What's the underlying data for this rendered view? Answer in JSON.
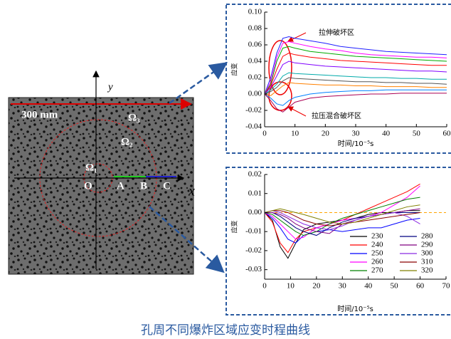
{
  "photo": {
    "y_axis": "y",
    "x_axis": "x",
    "scale": "300 mm",
    "regions": [
      "Ω₃",
      "Ω₂",
      "Ω₁"
    ],
    "points": [
      "O",
      "A",
      "B",
      "C"
    ]
  },
  "chart_data": [
    {
      "type": "line",
      "x_label": "时间/10⁻⁵s",
      "y_label": "应变",
      "annotations": [
        "拉伸破坏区",
        "拉压混合破坏区"
      ],
      "x": [
        0,
        2,
        4,
        6,
        8,
        10,
        15,
        20,
        25,
        30,
        35,
        40,
        45,
        50,
        55,
        60
      ],
      "xlim": [
        0,
        60
      ],
      "xticks": [
        0,
        10,
        20,
        30,
        40,
        50,
        60
      ],
      "ylim": [
        -0.04,
        0.1
      ],
      "yticks": [
        -0.04,
        -0.02,
        {
          "value": 0,
          "label": "0.00"
        },
        0.02,
        0.04,
        0.06,
        0.08,
        {
          "value": 0.1,
          "label": "0.10"
        }
      ],
      "series": [
        {
          "color": "#1f1fff",
          "values": [
            0,
            0.02,
            0.05,
            0.068,
            0.07,
            0.068,
            0.065,
            0.062,
            0.058,
            0.056,
            0.054,
            0.052,
            0.051,
            0.05,
            0.049,
            0.048
          ]
        },
        {
          "color": "#ff00ff",
          "values": [
            0,
            0.015,
            0.045,
            0.062,
            0.064,
            0.062,
            0.058,
            0.055,
            0.053,
            0.05,
            0.048,
            0.047,
            0.046,
            0.045,
            0.045,
            0.044
          ]
        },
        {
          "color": "#00aa00",
          "values": [
            0,
            0.012,
            0.04,
            0.056,
            0.058,
            0.056,
            0.052,
            0.05,
            0.048,
            0.046,
            0.045,
            0.044,
            0.043,
            0.042,
            0.041,
            0.04
          ]
        },
        {
          "color": "#ff0000",
          "values": [
            0,
            0.01,
            0.03,
            0.046,
            0.05,
            0.048,
            0.045,
            0.043,
            0.041,
            0.04,
            0.039,
            0.038,
            0.037,
            0.036,
            0.035,
            0.035
          ]
        },
        {
          "color": "#8000ff",
          "values": [
            0,
            0.008,
            0.022,
            0.036,
            0.04,
            0.038,
            0.036,
            0.034,
            0.033,
            0.032,
            0.031,
            0.03,
            0.029,
            0.028,
            0.028,
            0.027
          ]
        },
        {
          "color": "#00aaaa",
          "values": [
            0,
            0.005,
            0.012,
            0.022,
            0.026,
            0.025,
            0.024,
            0.023,
            0.022,
            0.021,
            0.02,
            0.02,
            0.019,
            0.019,
            0.018,
            0.018
          ]
        },
        {
          "color": "#555555",
          "values": [
            0,
            0.003,
            0.008,
            0.016,
            0.02,
            0.019,
            0.018,
            0.017,
            0.016,
            0.015,
            0.015,
            0.014,
            0.014,
            0.013,
            0.013,
            0.012
          ]
        },
        {
          "color": "#ff8000",
          "values": [
            0,
            -0.002,
            0.004,
            0.01,
            0.014,
            0.013,
            0.012,
            0.011,
            0.011,
            0.01,
            0.01,
            0.009,
            0.009,
            0.009,
            0.008,
            0.008
          ]
        },
        {
          "color": "#0080ff",
          "values": [
            0,
            -0.005,
            -0.012,
            -0.014,
            -0.008,
            -0.004,
            0,
            0.002,
            0.003,
            0.004,
            0.004,
            0.005,
            0.005,
            0.005,
            0.005,
            0.005
          ]
        },
        {
          "color": "#aa0055",
          "values": [
            0,
            -0.008,
            -0.018,
            -0.022,
            -0.016,
            -0.01,
            -0.005,
            -0.003,
            -0.002,
            -0.001,
            0,
            0,
            0.001,
            0.001,
            0.001,
            0.001
          ]
        }
      ]
    },
    {
      "type": "line",
      "x_label": "时间/10⁻⁵s",
      "y_label": "应变",
      "legend": "lower right",
      "hline": 0,
      "hline_color": "#ffa500",
      "x": [
        0,
        3,
        6,
        9,
        12,
        15,
        20,
        25,
        30,
        35,
        40,
        45,
        50,
        55,
        60
      ],
      "xlim": [
        0,
        70
      ],
      "xticks": [
        0,
        10,
        20,
        30,
        40,
        50,
        60,
        70
      ],
      "ylim": [
        -0.035,
        0.02
      ],
      "yticks": [
        -0.03,
        -0.02,
        -0.01,
        {
          "value": 0,
          "label": "0.00"
        },
        0.01,
        0.02
      ],
      "series": [
        {
          "name": "230",
          "color": "#000000",
          "values": [
            0,
            -0.004,
            -0.018,
            -0.024,
            -0.016,
            -0.009,
            -0.006,
            -0.005,
            -0.004,
            -0.003,
            -0.001,
            0,
            0,
            0.001,
            0.001
          ]
        },
        {
          "name": "240",
          "color": "#ff0000",
          "values": [
            0,
            -0.005,
            -0.016,
            -0.021,
            -0.014,
            -0.01,
            -0.008,
            -0.006,
            -0.004,
            -0.001,
            0.002,
            0.005,
            0.008,
            0.011,
            0.015
          ]
        },
        {
          "name": "250",
          "color": "#0000ff",
          "values": [
            0,
            -0.003,
            -0.008,
            -0.014,
            -0.016,
            -0.012,
            -0.01,
            -0.009,
            -0.01,
            -0.009,
            -0.008,
            -0.008,
            -0.006,
            -0.004,
            -0.003
          ]
        },
        {
          "name": "260",
          "color": "#ff00ff",
          "values": [
            0,
            -0.002,
            -0.006,
            -0.01,
            -0.014,
            -0.013,
            -0.008,
            -0.006,
            -0.004,
            -0.003,
            -0.002,
            0,
            0.004,
            0.008,
            0.014
          ]
        },
        {
          "name": "270",
          "color": "#008000",
          "values": [
            0,
            -0.001,
            -0.004,
            -0.007,
            -0.01,
            -0.012,
            -0.01,
            -0.006,
            -0.003,
            -0.001,
            0.001,
            0.003,
            0.005,
            0.007,
            0.008
          ]
        },
        {
          "name": "280",
          "color": "#000080",
          "values": [
            0,
            0,
            -0.002,
            -0.005,
            -0.008,
            -0.01,
            -0.012,
            -0.008,
            -0.005,
            -0.003,
            -0.002,
            -0.001,
            0,
            0,
            0
          ]
        },
        {
          "name": "290",
          "color": "#800080",
          "values": [
            0,
            0,
            -0.001,
            -0.003,
            -0.006,
            -0.008,
            -0.01,
            -0.011,
            -0.006,
            -0.004,
            -0.002,
            -0.001,
            0,
            0.001,
            0.002
          ]
        },
        {
          "name": "300",
          "color": "#8a2be2",
          "values": [
            0,
            0.001,
            0,
            -0.002,
            -0.004,
            -0.006,
            -0.008,
            -0.009,
            -0.007,
            -0.004,
            -0.002,
            -0.001,
            0,
            -0.002,
            -0.006
          ]
        },
        {
          "name": "310",
          "color": "#8b0000",
          "values": [
            0,
            0.001,
            0.001,
            0,
            -0.002,
            -0.004,
            -0.006,
            -0.007,
            -0.006,
            -0.005,
            -0.004,
            -0.003,
            -0.002,
            -0.001,
            0
          ]
        },
        {
          "name": "320",
          "color": "#808000",
          "values": [
            0,
            0.001,
            0.002,
            0.001,
            0,
            -0.001,
            -0.003,
            -0.005,
            -0.006,
            -0.005,
            -0.003,
            -0.001,
            0.001,
            0.003,
            0.004
          ]
        }
      ]
    }
  ],
  "caption": "孔周不同爆炸区域应变时程曲线"
}
